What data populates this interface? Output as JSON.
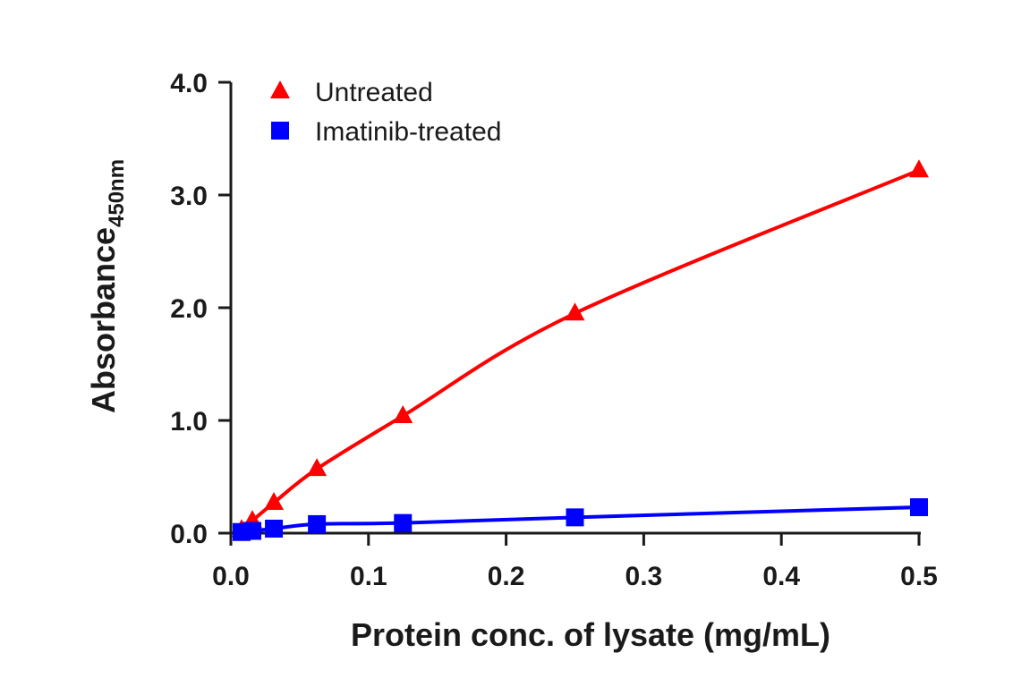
{
  "chart_data": {
    "type": "line",
    "title": "",
    "xlabel": "Protein conc. of lysate (mg/mL)",
    "ylabel": "Absorbance",
    "ylabel_subscript": "450nm",
    "xlim": [
      0,
      0.5
    ],
    "ylim": [
      0,
      4.0
    ],
    "xticks": [
      "0.0",
      "0.1",
      "0.2",
      "0.3",
      "0.4",
      "0.5"
    ],
    "yticks": [
      "0.0",
      "1.0",
      "2.0",
      "3.0",
      "4.0"
    ],
    "grid": false,
    "legend_position": "top-left",
    "series": [
      {
        "name": "Untreated",
        "color": "#ff0000",
        "marker": "triangle",
        "x": [
          0.0078,
          0.0156,
          0.03125,
          0.0625,
          0.125,
          0.25,
          0.5
        ],
        "y": [
          0.03,
          0.11,
          0.27,
          0.57,
          1.04,
          1.95,
          3.22
        ]
      },
      {
        "name": "Imatinib-treated",
        "color": "#0000ff",
        "marker": "square",
        "x": [
          0.0078,
          0.0156,
          0.03125,
          0.0625,
          0.125,
          0.25,
          0.5
        ],
        "y": [
          0.01,
          0.02,
          0.04,
          0.08,
          0.09,
          0.14,
          0.23
        ]
      }
    ]
  }
}
